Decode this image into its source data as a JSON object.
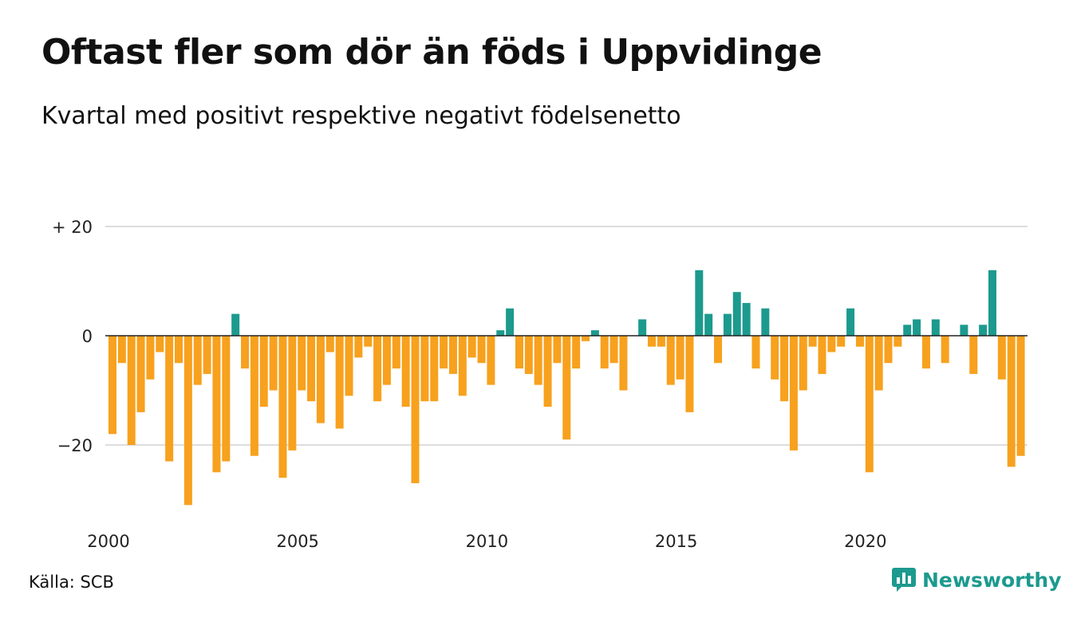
{
  "header": {
    "title": "Oftast fler som dör än föds i Uppvidinge",
    "subtitle": "Kvartal med positivt respektive negativt födelsenetto"
  },
  "footer": {
    "source": "Källa: SCB",
    "brand": "Newsworthy"
  },
  "colors": {
    "positive": "#1c9a8e",
    "negative": "#f7a11e",
    "grid": "#dddddd",
    "brand": "#1c9a8e"
  },
  "chart_data": {
    "type": "bar",
    "x_start_year": 2000,
    "quarters_per_year": 4,
    "values": [
      -18,
      -5,
      -20,
      -14,
      -8,
      -3,
      -23,
      -5,
      -31,
      -9,
      -7,
      -25,
      -23,
      4,
      -6,
      -22,
      -13,
      -10,
      -26,
      -21,
      -10,
      -12,
      -16,
      -3,
      -17,
      -11,
      -4,
      -2,
      -12,
      -9,
      -6,
      -13,
      -27,
      -12,
      -12,
      -6,
      -7,
      -11,
      -4,
      -5,
      -9,
      1,
      5,
      -6,
      -7,
      -9,
      -13,
      -5,
      -19,
      -6,
      -1,
      1,
      -6,
      -5,
      -10,
      0,
      3,
      -2,
      -2,
      -9,
      -8,
      -14,
      12,
      4,
      -5,
      4,
      8,
      6,
      -6,
      5,
      -8,
      -12,
      -21,
      -10,
      -2,
      -7,
      -3,
      -2,
      5,
      -2,
      -25,
      -10,
      -5,
      -2,
      2,
      3,
      -6,
      3,
      -5,
      0,
      2,
      -7,
      2,
      12,
      -8,
      -24,
      -22
    ],
    "ylim": [
      -33,
      20
    ],
    "yticks": [
      20,
      0,
      -20
    ],
    "ytick_labels": [
      "+ 20",
      "0",
      "−20"
    ],
    "xticks": [
      2000,
      2005,
      2010,
      2015,
      2020
    ],
    "xtick_labels": [
      "2000",
      "2005",
      "2010",
      "2015",
      "2020"
    ],
    "grid": true,
    "legend": "none"
  }
}
